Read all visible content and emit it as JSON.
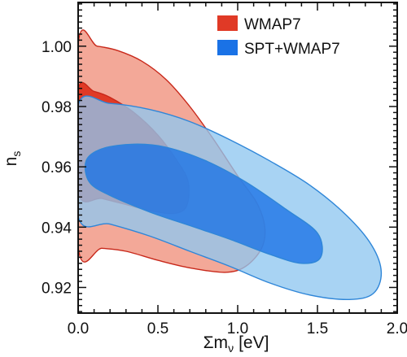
{
  "chart_data": {
    "type": "contour",
    "xlabel": "Σm",
    "xlabel_sub": "ν",
    "xlabel_unit": "[eV]",
    "ylabel": "n",
    "ylabel_sub": "s",
    "xlim": [
      0.0,
      2.0
    ],
    "ylim": [
      0.9115,
      1.0145
    ],
    "x_ticks": [
      0.0,
      0.5,
      1.0,
      1.5,
      2.0
    ],
    "x_tick_labels": [
      "0.0",
      "0.5",
      "1.0",
      "1.5",
      "2.0"
    ],
    "y_ticks": [
      0.92,
      0.94,
      0.96,
      0.98,
      1.0
    ],
    "y_tick_labels": [
      "0.92",
      "0.94",
      "0.96",
      "0.98",
      "1.00"
    ],
    "legend_position": "top-right",
    "grid": false,
    "series": [
      {
        "name": "WMAP7",
        "color": "#e03a26",
        "fill_outer": "#f3a898",
        "edge": "#c8281a",
        "contour_95": [
          [
            0.0,
            1.0005
          ],
          [
            0.12,
            1.0
          ],
          [
            0.25,
            0.9985
          ],
          [
            0.4,
            0.995
          ],
          [
            0.55,
            0.989
          ],
          [
            0.7,
            0.98
          ],
          [
            0.85,
            0.969
          ],
          [
            1.0,
            0.957
          ],
          [
            1.12,
            0.948
          ],
          [
            1.17,
            0.94
          ],
          [
            1.15,
            0.933
          ],
          [
            1.05,
            0.927
          ],
          [
            0.92,
            0.925
          ],
          [
            0.7,
            0.9265
          ],
          [
            0.5,
            0.929
          ],
          [
            0.3,
            0.932
          ],
          [
            0.15,
            0.933
          ],
          [
            0.0,
            0.9335
          ]
        ],
        "contour_68": [
          [
            0.0,
            0.9855
          ],
          [
            0.1,
            0.985
          ],
          [
            0.2,
            0.983
          ],
          [
            0.35,
            0.978
          ],
          [
            0.5,
            0.9705
          ],
          [
            0.62,
            0.962
          ],
          [
            0.69,
            0.955
          ],
          [
            0.68,
            0.947
          ],
          [
            0.6,
            0.9445
          ],
          [
            0.45,
            0.9455
          ],
          [
            0.3,
            0.9475
          ],
          [
            0.15,
            0.9495
          ],
          [
            0.0,
            0.9515
          ]
        ]
      },
      {
        "name": "SPT+WMAP7",
        "color": "#1a72e6",
        "fill_outer": "#8fc7ef",
        "edge": "#2f86d8",
        "contour_95": [
          [
            0.0,
            0.9805
          ],
          [
            0.2,
            0.981
          ],
          [
            0.45,
            0.979
          ],
          [
            0.7,
            0.975
          ],
          [
            0.95,
            0.969
          ],
          [
            1.2,
            0.962
          ],
          [
            1.45,
            0.954
          ],
          [
            1.68,
            0.944
          ],
          [
            1.84,
            0.934
          ],
          [
            1.9,
            0.925
          ],
          [
            1.85,
            0.918
          ],
          [
            1.7,
            0.916
          ],
          [
            1.45,
            0.9175
          ],
          [
            1.2,
            0.9215
          ],
          [
            0.95,
            0.927
          ],
          [
            0.7,
            0.932
          ],
          [
            0.45,
            0.937
          ],
          [
            0.2,
            0.941
          ],
          [
            0.0,
            0.9435
          ]
        ],
        "contour_68": [
          [
            0.05,
            0.962
          ],
          [
            0.15,
            0.966
          ],
          [
            0.35,
            0.9675
          ],
          [
            0.55,
            0.9665
          ],
          [
            0.8,
            0.962
          ],
          [
            1.05,
            0.955
          ],
          [
            1.3,
            0.946
          ],
          [
            1.5,
            0.938
          ],
          [
            1.52,
            0.93
          ],
          [
            1.4,
            0.928
          ],
          [
            1.2,
            0.931
          ],
          [
            0.95,
            0.936
          ],
          [
            0.7,
            0.9405
          ],
          [
            0.45,
            0.945
          ],
          [
            0.2,
            0.9505
          ],
          [
            0.07,
            0.955
          ]
        ]
      }
    ]
  }
}
